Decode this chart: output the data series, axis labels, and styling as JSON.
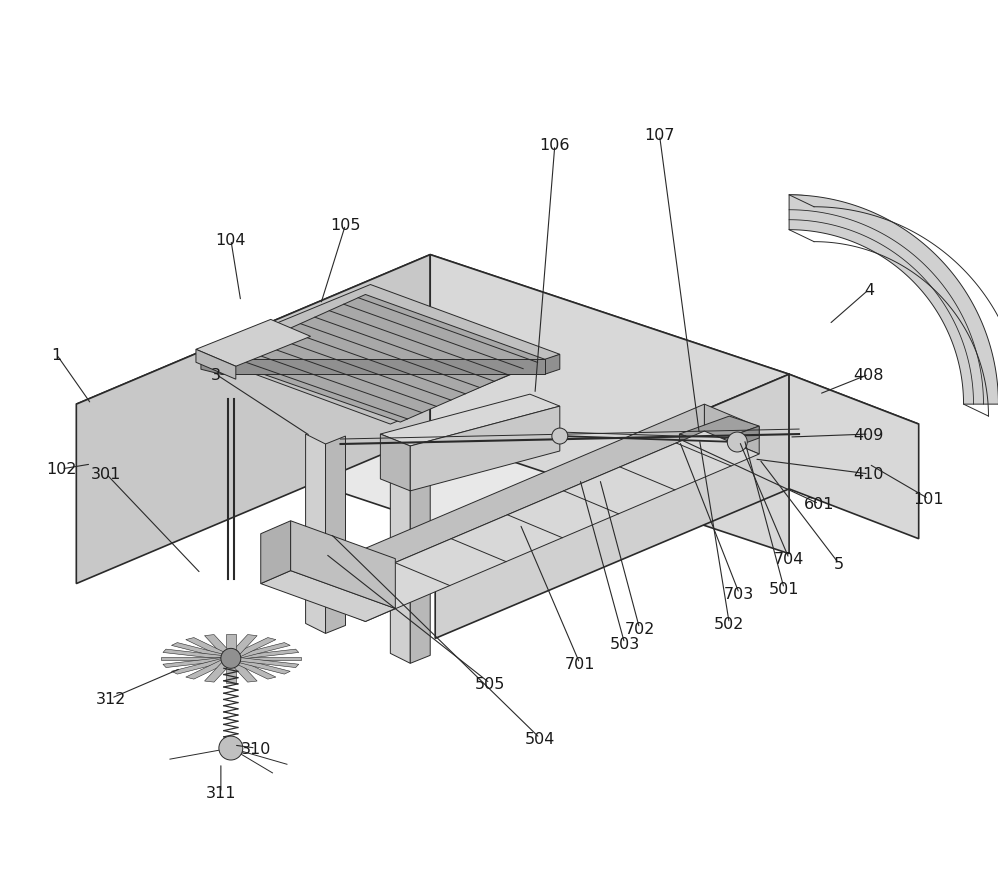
{
  "bg_color": "#ffffff",
  "lc": "#2a2a2a",
  "face_top": "#e8e8e8",
  "face_front": "#c8c8c8",
  "face_right": "#d8d8d8",
  "face_dark": "#b0b0b0",
  "slot_fill": "#b8b8b8",
  "arc_fill": "#d0d0d0",
  "figsize": [
    10.0,
    8.95
  ],
  "dpi": 100
}
